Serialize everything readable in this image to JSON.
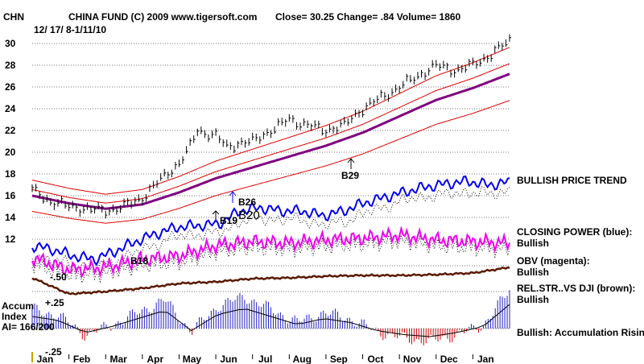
{
  "header": {
    "symbol": "CHN",
    "title": "CHINA FUND  (C) 2009 www.tigersoft.com",
    "quote": "Close=  30.25  Change= .84 Volume= 1860",
    "date_range": "12/ 17/ 8-1/11/10"
  },
  "chart_data": {
    "type": "line",
    "title": "CHINA FUND (C) 2009 www.tigersoft.com",
    "x_labels": [
      "Jan",
      "Feb",
      "Mar",
      "Apr",
      "May",
      "Jun",
      "Jul",
      "Aug",
      "Sep",
      "Oct",
      "Nov",
      "Dec",
      "Jan"
    ],
    "y_ticks": [
      "30",
      "28",
      "26",
      "24",
      "22",
      "20",
      "18",
      "16",
      "14",
      "12"
    ],
    "ylim": [
      11,
      31
    ],
    "price": {
      "months": [
        0,
        0.5,
        1,
        1.5,
        2,
        2.5,
        3,
        3.5,
        4,
        4.3,
        4.5,
        5,
        5.3,
        5.6,
        6,
        6.5,
        7,
        7.5,
        8,
        8.5,
        9,
        9.5,
        10,
        10.5,
        11,
        11.5,
        12,
        12.5,
        13
      ],
      "close": [
        16.5,
        15.5,
        15,
        14.8,
        14.6,
        15,
        15.8,
        17.5,
        19,
        20.5,
        22,
        21.5,
        20.5,
        20.8,
        21,
        22,
        23,
        22.5,
        22,
        22.5,
        24,
        25,
        26,
        27,
        28,
        27.5,
        28,
        29,
        30.25
      ]
    },
    "moving_average_months": [
      0,
      1,
      2,
      3,
      4,
      5,
      6,
      7,
      8,
      9,
      10,
      11,
      12,
      13
    ],
    "moving_average_values": [
      16,
      15.3,
      14.8,
      15.2,
      16.3,
      17.6,
      18.6,
      19.6,
      20.6,
      21.8,
      23.3,
      24.8,
      25.9,
      27.2
    ],
    "band_offset_pct": 9,
    "ma_label": "",
    "annotations": [
      "B26",
      "B19",
      "B20",
      "B18",
      "B29",
      "-.50",
      "+.25",
      "-.25"
    ],
    "indicator_labels": [
      {
        "name": "BULLISH PRICE TREND",
        "status": ""
      },
      {
        "name": "CLOSING POWER (blue):",
        "status": "Bullish"
      },
      {
        "name": "OBV (magenta):",
        "status": "Bullish"
      },
      {
        "name": "REL.STR..VS DJI (brown):",
        "status": "Bullish"
      }
    ],
    "accum": {
      "title_line1": "Accum",
      "title_line2": "Index",
      "ai_value": "AI= 166/200",
      "status": "Bullish: Accumulation Rising"
    },
    "colors": {
      "price": "#000000",
      "bands": "#dd0000",
      "moving_average": "#800080",
      "closing_power": "#0000ee",
      "obv": "#ee00ee",
      "rel_str": "#5a1a00",
      "accum": "#2020c0",
      "grid": "#777777"
    }
  }
}
